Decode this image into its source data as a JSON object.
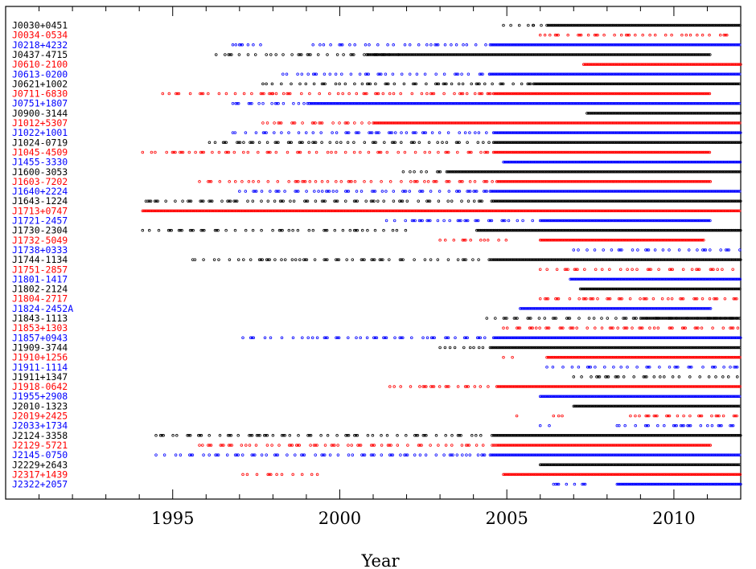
{
  "chart_data": {
    "type": "scatter",
    "xlabel": "Year",
    "xlim": [
      1990.0,
      2012.0
    ],
    "xticks": [
      1995,
      2000,
      2005,
      2010
    ],
    "grid": false,
    "legend": "none",
    "colors": {
      "black": "#000000",
      "red": "#ff0000",
      "blue": "#0000ff"
    },
    "series": [
      {
        "name": "J0030+0451",
        "color": "black",
        "segments": [
          [
            2004.9,
            2005.8,
            "sparse"
          ],
          [
            2005.8,
            2006.1,
            "sparse"
          ],
          [
            2006.2,
            2012.0,
            "dense"
          ]
        ]
      },
      {
        "name": "J0034-0534",
        "color": "red",
        "segments": [
          [
            2006.0,
            2011.6,
            "sparse"
          ]
        ]
      },
      {
        "name": "J0218+4232",
        "color": "blue",
        "segments": [
          [
            1996.8,
            1997.7,
            "sparse"
          ],
          [
            1999.2,
            2004.5,
            "sparse"
          ],
          [
            2004.5,
            2012.0,
            "dense"
          ]
        ]
      },
      {
        "name": "J0437-4715",
        "color": "black",
        "segments": [
          [
            1996.3,
            2001.8,
            "sparse"
          ],
          [
            2000.8,
            2002.3,
            "dense"
          ],
          [
            2002.3,
            2011.1,
            "dense"
          ]
        ]
      },
      {
        "name": "J0610-2100",
        "color": "red",
        "segments": [
          [
            2007.3,
            2012.0,
            "dense"
          ]
        ]
      },
      {
        "name": "J0613-0200",
        "color": "blue",
        "segments": [
          [
            1998.3,
            2004.5,
            "sparse"
          ],
          [
            2004.5,
            2012.0,
            "dense"
          ]
        ]
      },
      {
        "name": "J0621+1002",
        "color": "black",
        "segments": [
          [
            1997.7,
            2005.8,
            "sparse"
          ],
          [
            2005.8,
            2012.0,
            "dense"
          ]
        ]
      },
      {
        "name": "J0711-6830",
        "color": "red",
        "segments": [
          [
            1994.7,
            1998.0,
            "sparse"
          ],
          [
            1998.0,
            2004.6,
            "sparse"
          ],
          [
            2004.6,
            2011.1,
            "dense"
          ]
        ]
      },
      {
        "name": "J0751+1807",
        "color": "blue",
        "segments": [
          [
            1996.8,
            1999.1,
            "sparse"
          ],
          [
            1999.1,
            2012.0,
            "dense"
          ]
        ]
      },
      {
        "name": "J0900-3144",
        "color": "black",
        "segments": [
          [
            2007.4,
            2012.0,
            "dense"
          ]
        ]
      },
      {
        "name": "J1012+5307",
        "color": "red",
        "segments": [
          [
            1997.7,
            2001.0,
            "sparse"
          ],
          [
            2001.0,
            2012.0,
            "dense"
          ]
        ]
      },
      {
        "name": "J1022+1001",
        "color": "blue",
        "segments": [
          [
            1996.8,
            2004.6,
            "sparse"
          ],
          [
            2004.6,
            2012.0,
            "dense"
          ]
        ]
      },
      {
        "name": "J1024-0719",
        "color": "black",
        "segments": [
          [
            1996.1,
            2004.6,
            "sparse"
          ],
          [
            2004.6,
            2012.0,
            "dense"
          ]
        ]
      },
      {
        "name": "J1045-4509",
        "color": "red",
        "segments": [
          [
            1994.1,
            2004.6,
            "sparse"
          ],
          [
            2004.6,
            2011.1,
            "dense"
          ]
        ]
      },
      {
        "name": "J1455-3330",
        "color": "blue",
        "segments": [
          [
            2004.9,
            2012.0,
            "dense"
          ]
        ]
      },
      {
        "name": "J1600-3053",
        "color": "black",
        "segments": [
          [
            2001.9,
            2003.2,
            "sparse"
          ],
          [
            2003.2,
            2012.0,
            "dense"
          ]
        ]
      },
      {
        "name": "J1603-7202",
        "color": "red",
        "segments": [
          [
            1995.8,
            2004.7,
            "sparse"
          ],
          [
            2004.7,
            2011.1,
            "dense"
          ]
        ]
      },
      {
        "name": "J1640+2224",
        "color": "blue",
        "segments": [
          [
            1997.0,
            2004.5,
            "sparse"
          ],
          [
            2004.5,
            2012.0,
            "dense"
          ]
        ]
      },
      {
        "name": "J1643-1224",
        "color": "black",
        "segments": [
          [
            1994.2,
            2004.6,
            "sparse"
          ],
          [
            2004.6,
            2012.0,
            "dense"
          ]
        ]
      },
      {
        "name": "J1713+0747",
        "color": "red",
        "segments": [
          [
            1994.1,
            2012.0,
            "dense"
          ]
        ]
      },
      {
        "name": "J1721-2457",
        "color": "blue",
        "segments": [
          [
            2001.4,
            2006.0,
            "sparse"
          ],
          [
            2006.0,
            2011.1,
            "dense"
          ]
        ]
      },
      {
        "name": "J1730-2304",
        "color": "black",
        "segments": [
          [
            1994.1,
            2002.0,
            "sparse"
          ],
          [
            2004.1,
            2012.0,
            "dense"
          ]
        ]
      },
      {
        "name": "J1732-5049",
        "color": "red",
        "segments": [
          [
            2003.0,
            2005.0,
            "sparse"
          ],
          [
            2006.0,
            2010.9,
            "dense"
          ]
        ]
      },
      {
        "name": "J1738+0333",
        "color": "blue",
        "segments": [
          [
            2007.0,
            2012.0,
            "sparse"
          ]
        ]
      },
      {
        "name": "J1744-1134",
        "color": "black",
        "segments": [
          [
            1995.6,
            2004.6,
            "sparse"
          ],
          [
            2004.6,
            2012.0,
            "dense"
          ]
        ]
      },
      {
        "name": "J1751-2857",
        "color": "red",
        "segments": [
          [
            2006.0,
            2012.0,
            "sparse"
          ]
        ]
      },
      {
        "name": "J1801-1417",
        "color": "blue",
        "segments": [
          [
            2006.9,
            2012.0,
            "dense"
          ]
        ]
      },
      {
        "name": "J1802-2124",
        "color": "black",
        "segments": [
          [
            2007.2,
            2012.0,
            "dense"
          ]
        ]
      },
      {
        "name": "J1804-2717",
        "color": "red",
        "segments": [
          [
            2006.0,
            2012.0,
            "sparse"
          ]
        ]
      },
      {
        "name": "J1824-2452A",
        "color": "blue",
        "segments": [
          [
            2005.4,
            2011.1,
            "dense"
          ]
        ]
      },
      {
        "name": "J1843-1113",
        "color": "black",
        "segments": [
          [
            2004.4,
            2012.0,
            "sparse"
          ],
          [
            2009.0,
            2012.0,
            "dense"
          ]
        ]
      },
      {
        "name": "J1853+1303",
        "color": "red",
        "segments": [
          [
            2004.9,
            2012.0,
            "sparse"
          ]
        ]
      },
      {
        "name": "J1857+0943",
        "color": "blue",
        "segments": [
          [
            1997.1,
            2004.6,
            "sparse"
          ],
          [
            2004.6,
            2012.0,
            "dense"
          ]
        ]
      },
      {
        "name": "J1909-3744",
        "color": "black",
        "segments": [
          [
            2003.0,
            2004.5,
            "sparse"
          ],
          [
            2004.5,
            2012.0,
            "dense"
          ]
        ]
      },
      {
        "name": "J1910+1256",
        "color": "red",
        "segments": [
          [
            2004.9,
            2005.2,
            "sparse"
          ],
          [
            2006.2,
            2012.0,
            "dense"
          ]
        ]
      },
      {
        "name": "J1911-1114",
        "color": "blue",
        "segments": [
          [
            2006.2,
            2012.0,
            "sparse"
          ]
        ]
      },
      {
        "name": "J1911+1347",
        "color": "black",
        "segments": [
          [
            2007.0,
            2012.0,
            "sparse"
          ]
        ]
      },
      {
        "name": "J1918-0642",
        "color": "red",
        "segments": [
          [
            2001.5,
            2004.7,
            "sparse"
          ],
          [
            2004.7,
            2012.0,
            "dense"
          ]
        ]
      },
      {
        "name": "J1955+2908",
        "color": "blue",
        "segments": [
          [
            2006.0,
            2012.0,
            "dense"
          ]
        ]
      },
      {
        "name": "J2010-1323",
        "color": "black",
        "segments": [
          [
            2007.0,
            2012.0,
            "dense"
          ]
        ]
      },
      {
        "name": "J2019+2425",
        "color": "red",
        "segments": [
          [
            2005.3,
            2005.3,
            "sparse"
          ],
          [
            2006.4,
            2006.7,
            "sparse"
          ],
          [
            2008.7,
            2012.0,
            "sparse"
          ]
        ]
      },
      {
        "name": "J2033+1734",
        "color": "blue",
        "segments": [
          [
            2006.0,
            2006.4,
            "sparse"
          ],
          [
            2008.3,
            2012.0,
            "sparse"
          ]
        ]
      },
      {
        "name": "J2124-3358",
        "color": "black",
        "segments": [
          [
            1994.5,
            2004.6,
            "sparse"
          ],
          [
            2004.6,
            2012.0,
            "dense"
          ]
        ]
      },
      {
        "name": "J2129-5721",
        "color": "red",
        "segments": [
          [
            1995.8,
            2004.7,
            "sparse"
          ],
          [
            2004.7,
            2011.1,
            "dense"
          ]
        ]
      },
      {
        "name": "J2145-0750",
        "color": "blue",
        "segments": [
          [
            1994.5,
            2004.5,
            "sparse"
          ],
          [
            2004.5,
            2012.0,
            "dense"
          ]
        ]
      },
      {
        "name": "J2229+2643",
        "color": "black",
        "segments": [
          [
            2006.0,
            2012.0,
            "dense"
          ]
        ]
      },
      {
        "name": "J2317+1439",
        "color": "red",
        "segments": [
          [
            1997.1,
            1999.5,
            "sparse"
          ],
          [
            2004.9,
            2012.0,
            "dense"
          ]
        ]
      },
      {
        "name": "J2322+2057",
        "color": "blue",
        "segments": [
          [
            2006.4,
            2007.5,
            "sparse"
          ],
          [
            2008.3,
            2012.0,
            "dense"
          ]
        ]
      }
    ]
  }
}
